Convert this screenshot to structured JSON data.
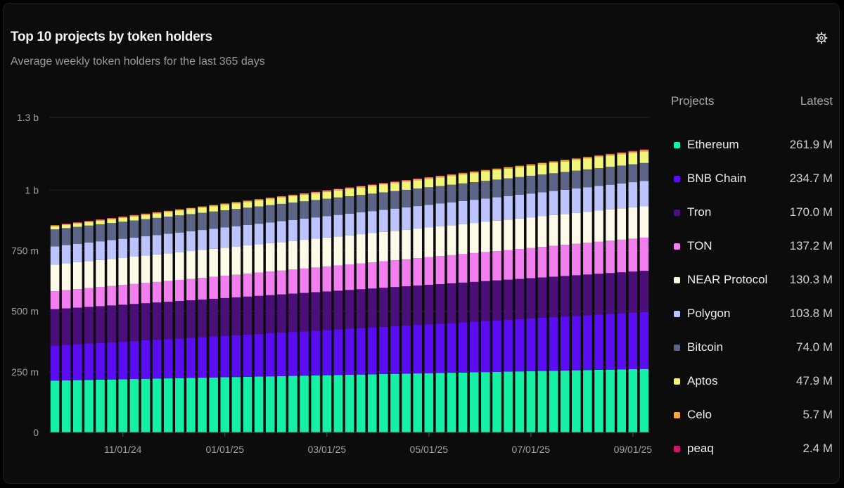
{
  "header": {
    "title": "Top 10 projects by token holders",
    "subtitle": "Average weekly token holders for the last 365 days"
  },
  "legend": {
    "col_projects": "Projects",
    "col_latest": "Latest"
  },
  "icons": {
    "settings": "gear-icon"
  },
  "chart_data": {
    "type": "bar",
    "stacked": true,
    "weeks": 53,
    "ylim": [
      0,
      1300000000
    ],
    "yticks": [
      {
        "value": 0,
        "label": "0"
      },
      {
        "value": 250000000,
        "label": "250 m"
      },
      {
        "value": 500000000,
        "label": "500 m"
      },
      {
        "value": 750000000,
        "label": "750 m"
      },
      {
        "value": 1000000000,
        "label": "1 b"
      },
      {
        "value": 1300000000,
        "label": "1.3 b"
      }
    ],
    "xticks": [
      {
        "index": 6,
        "label": "11/01/24"
      },
      {
        "index": 15,
        "label": "01/01/25"
      },
      {
        "index": 24,
        "label": "03/01/25"
      },
      {
        "index": 33,
        "label": "05/01/25"
      },
      {
        "index": 42,
        "label": "07/01/25"
      },
      {
        "index": 51,
        "label": "09/01/25"
      }
    ],
    "series": [
      {
        "name": "Ethereum",
        "color": "#14f0a5",
        "latest_label": "261.9 M",
        "start": 214000000,
        "end": 262000000
      },
      {
        "name": "BNB Chain",
        "color": "#5a0df2",
        "latest_label": "234.7 M",
        "start": 145000000,
        "end": 235000000
      },
      {
        "name": "Tron",
        "color": "#4b0f7a",
        "latest_label": "170.0 M",
        "start": 150000000,
        "end": 170000000
      },
      {
        "name": "TON",
        "color": "#f27ef0",
        "latest_label": "137.2 M",
        "start": 74000000,
        "end": 137000000
      },
      {
        "name": "NEAR Protocol",
        "color": "#fdfbe8",
        "latest_label": "130.3 M",
        "start": 110000000,
        "end": 130000000
      },
      {
        "name": "Polygon",
        "color": "#bcc4ff",
        "latest_label": "103.8 M",
        "start": 75000000,
        "end": 104000000
      },
      {
        "name": "Bitcoin",
        "color": "#5c6585",
        "latest_label": "74.0 M",
        "start": 70000000,
        "end": 74000000
      },
      {
        "name": "Aptos",
        "color": "#f2f57a",
        "latest_label": "47.9 M",
        "start": 12000000,
        "end": 48000000
      },
      {
        "name": "Celo",
        "color": "#f5a742",
        "latest_label": "5.7 M",
        "start": 5000000,
        "end": 5700000
      },
      {
        "name": "peaq",
        "color": "#cc1a6b",
        "latest_label": "2.4 M",
        "start": 0,
        "end": 2400000
      }
    ]
  }
}
